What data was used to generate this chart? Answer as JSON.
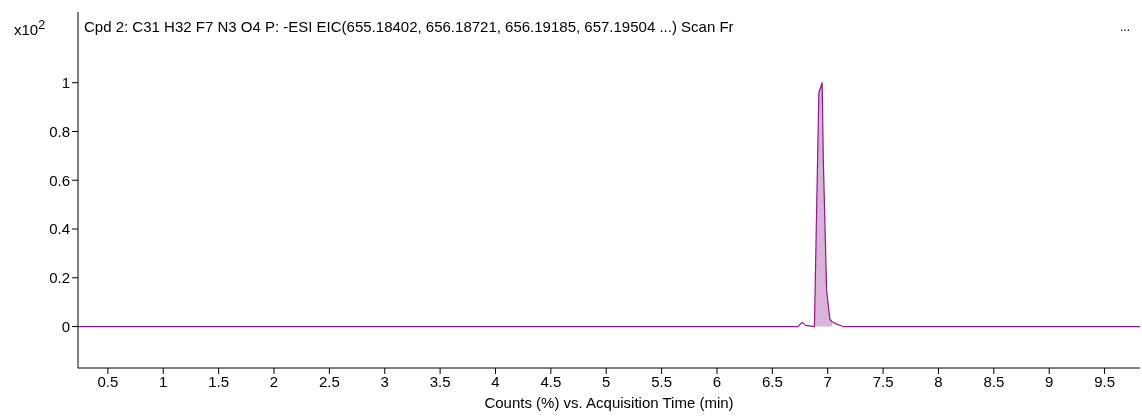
{
  "chart_data": {
    "type": "line",
    "title": "Cpd 2: C31 H32 F7 N3 O4 P: -ESI EIC(655.18402, 656.18721, 656.19185, 657.19504 ...) Scan Fr",
    "annotations": [
      "..."
    ],
    "ylabel": "x10$^{2}$",
    "xlabel": "Counts (%) vs. Acquisition Time (min)",
    "series": [
      {
        "color": "#8b1a8b",
        "x": [
          0.23,
          2,
          4,
          6,
          6.73,
          6.77,
          6.8,
          6.88,
          6.92,
          6.95,
          6.96,
          6.99,
          7.02,
          7.04,
          7.08,
          7.14,
          8,
          9,
          9.82
        ],
        "values": [
          0,
          0,
          0,
          0,
          0,
          0.017,
          0.005,
          0,
          0.96,
          1.0,
          0.69,
          0.15,
          0.03,
          0.02,
          0.01,
          0,
          0,
          0,
          0
        ]
      },
      {
        "type": "area",
        "color": "#d9b3d9",
        "x": [
          6.88,
          6.92,
          6.95,
          6.96,
          6.99,
          7.02,
          7.04
        ],
        "values": [
          0,
          0.96,
          1.0,
          0.69,
          0.15,
          0.03,
          0.02
        ]
      }
    ],
    "xlim": [
      0.23,
      9.82
    ],
    "xticks": [
      0.5,
      1,
      1.5,
      2,
      2.5,
      3,
      3.5,
      4,
      4.5,
      5,
      5.5,
      6,
      6.5,
      7,
      7.5,
      8,
      8.5,
      9,
      9.5
    ],
    "ylim": [
      -0.17,
      1.29
    ],
    "yticks": [
      0,
      0.2,
      0.4,
      0.6,
      0.8,
      1
    ],
    "grid": false,
    "marker": "none",
    "line_style": "solid"
  }
}
